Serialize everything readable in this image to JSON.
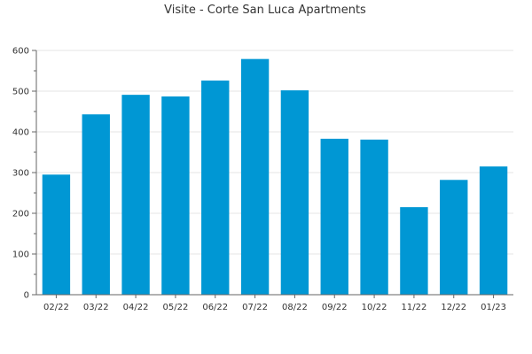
{
  "chart_data": {
    "type": "bar",
    "title": "Visite - Corte San Luca Apartments",
    "xlabel": "",
    "ylabel": "",
    "categories": [
      "02/22",
      "03/22",
      "04/22",
      "05/22",
      "06/22",
      "07/22",
      "08/22",
      "09/22",
      "10/22",
      "11/22",
      "12/22",
      "01/23"
    ],
    "values": [
      295,
      443,
      491,
      487,
      526,
      579,
      502,
      383,
      381,
      215,
      282,
      315
    ],
    "ylim": [
      0,
      600
    ],
    "yticks": [
      0,
      100,
      200,
      300,
      400,
      500,
      600
    ],
    "grid": true,
    "legend": "none",
    "bar_color": "#0097d4",
    "axis_color": "#666666",
    "grid_color": "#e5e5e5"
  }
}
